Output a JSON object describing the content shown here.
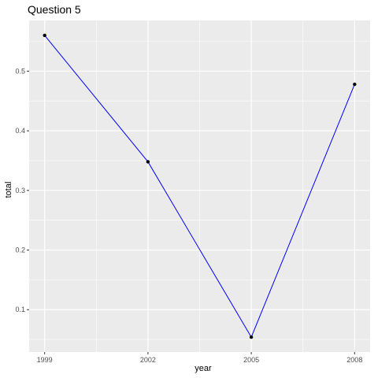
{
  "chart_data": {
    "type": "line",
    "title": "Question 5",
    "xlabel": "year",
    "ylabel": "total",
    "x": [
      1999,
      2002,
      2005,
      2008
    ],
    "series": [
      {
        "values": [
          0.56,
          0.348,
          0.054,
          0.478
        ]
      }
    ],
    "xlim": [
      1998.55,
      2008.45
    ],
    "ylim": [
      0.029,
      0.585
    ],
    "x_ticks": [
      1999,
      2002,
      2005,
      2008
    ],
    "x_tick_labels": [
      "1999",
      "2002",
      "2005",
      "2008"
    ],
    "y_ticks": [
      0.1,
      0.2,
      0.3,
      0.4,
      0.5
    ],
    "y_tick_labels": [
      "0.1",
      "0.2",
      "0.3",
      "0.4",
      "0.5"
    ],
    "grid": true,
    "legend": "none",
    "colors": {
      "line": "#0000ff",
      "points": "#000000",
      "panel": "#ebebeb",
      "grid": "#ffffff"
    }
  }
}
